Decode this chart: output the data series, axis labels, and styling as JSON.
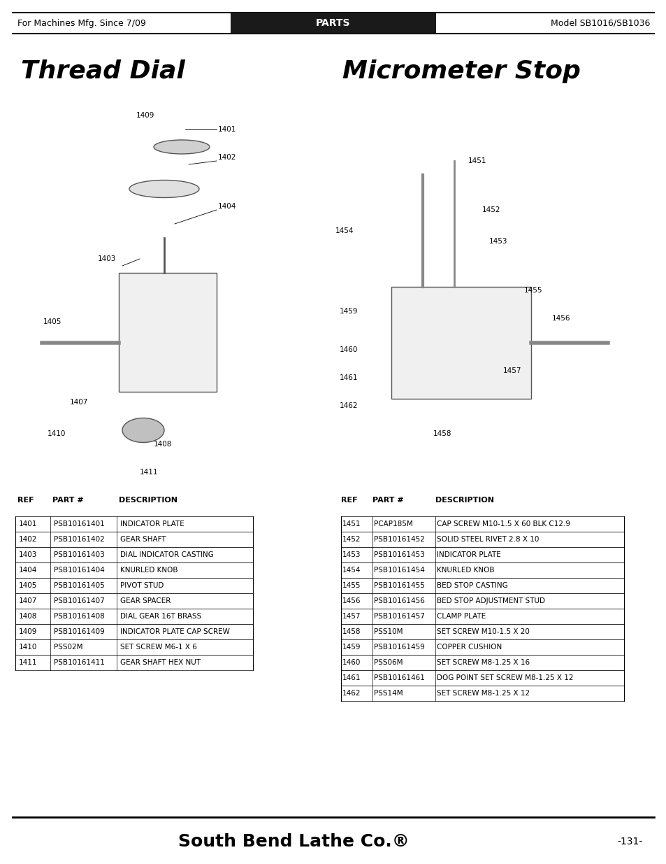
{
  "header_left": "For Machines Mfg. Since 7/09",
  "header_center": "PARTS",
  "header_right": "Model SB1016/SB1036",
  "title_left": "Thread Dial",
  "title_right": "Micrometer Stop",
  "footer_center": "South Bend Lathe Co.®",
  "footer_right": "-131-",
  "left_table_headers": [
    "REF",
    "PART #",
    "DESCRIPTION"
  ],
  "left_table_data": [
    [
      "1401",
      "PSB10161401",
      "INDICATOR PLATE"
    ],
    [
      "1402",
      "PSB10161402",
      "GEAR SHAFT"
    ],
    [
      "1403",
      "PSB10161403",
      "DIAL INDICATOR CASTING"
    ],
    [
      "1404",
      "PSB10161404",
      "KNURLED KNOB"
    ],
    [
      "1405",
      "PSB10161405",
      "PIVOT STUD"
    ],
    [
      "1407",
      "PSB10161407",
      "GEAR SPACER"
    ],
    [
      "1408",
      "PSB10161408",
      "DIAL GEAR 16T BRASS"
    ],
    [
      "1409",
      "PSB10161409",
      "INDICATOR PLATE CAP SCREW"
    ],
    [
      "1410",
      "PSS02M",
      "SET SCREW M6-1 X 6"
    ],
    [
      "1411",
      "PSB10161411",
      "GEAR SHAFT HEX NUT"
    ]
  ],
  "right_table_headers": [
    "REF",
    "PART #",
    "DESCRIPTION"
  ],
  "right_table_data": [
    [
      "1451",
      "PCAP185M",
      "CAP SCREW M10-1.5 X 60 BLK C12.9"
    ],
    [
      "1452",
      "PSB10161452",
      "SOLID STEEL RIVET 2.8 X 10"
    ],
    [
      "1453",
      "PSB10161453",
      "INDICATOR PLATE"
    ],
    [
      "1454",
      "PSB10161454",
      "KNURLED KNOB"
    ],
    [
      "1455",
      "PSB10161455",
      "BED STOP CASTING"
    ],
    [
      "1456",
      "PSB10161456",
      "BED STOP ADJUSTMENT STUD"
    ],
    [
      "1457",
      "PSB10161457",
      "CLAMP PLATE"
    ],
    [
      "1458",
      "PSS10M",
      "SET SCREW M10-1.5 X 20"
    ],
    [
      "1459",
      "PSB10161459",
      "COPPER CUSHION"
    ],
    [
      "1460",
      "PSS06M",
      "SET SCREW M8-1.25 X 16"
    ],
    [
      "1461",
      "PSB10161461",
      "DOG POINT SET SCREW M8-1.25 X 12"
    ],
    [
      "1462",
      "PSS14M",
      "SET SCREW M8-1.25 X 12"
    ]
  ],
  "bg_color": "#ffffff",
  "header_bg": "#1a1a1a",
  "header_fg": "#ffffff",
  "table_border_color": "#000000",
  "text_color": "#000000"
}
